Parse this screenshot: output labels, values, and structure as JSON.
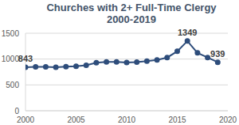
{
  "chart_data": {
    "type": "line",
    "title": "Churches with 2+ Full-Time Clergy 2000-2019",
    "x": [
      2000,
      2001,
      2002,
      2003,
      2004,
      2005,
      2006,
      2007,
      2008,
      2009,
      2010,
      2011,
      2012,
      2013,
      2014,
      2015,
      2016,
      2017,
      2018,
      2019
    ],
    "values": [
      843,
      850,
      848,
      840,
      855,
      860,
      880,
      930,
      945,
      945,
      935,
      940,
      960,
      985,
      1030,
      1150,
      1349,
      1120,
      1030,
      939
    ],
    "value_labels": [
      "843",
      null,
      null,
      null,
      null,
      null,
      null,
      null,
      null,
      null,
      null,
      null,
      null,
      null,
      null,
      null,
      "1349",
      null,
      null,
      "939"
    ],
    "data_labels": true,
    "color": "#2e4d7b",
    "marker": "circle",
    "xlim": [
      2000,
      2020
    ],
    "xticks": [
      2000,
      2005,
      2010,
      2015,
      2020
    ],
    "ylim": [
      0,
      1500
    ],
    "yticks": [
      0,
      500,
      1000,
      1500
    ],
    "grid": true
  }
}
